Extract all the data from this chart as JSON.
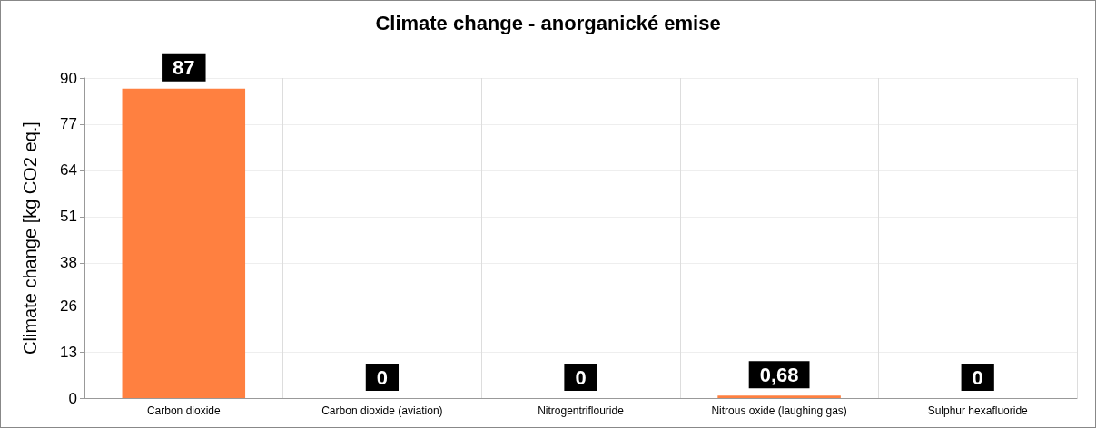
{
  "chart_data": {
    "type": "bar",
    "title": "Climate change - anorganické emise",
    "ylabel": "Climate change [kg CO2 eq.]",
    "categories": [
      "Carbon dioxide",
      "Carbon dioxide (aviation)",
      "Nitrogentriflouride",
      "Nitrous oxide (laughing gas)",
      "Sulphur hexafluoride"
    ],
    "values": [
      87,
      0,
      0,
      0.68,
      0
    ],
    "value_labels": [
      "87",
      "0",
      "0",
      "0,68",
      "0"
    ],
    "color": "#ff8040",
    "ylim": [
      0,
      90
    ],
    "yticks": [
      0,
      13,
      26,
      38,
      51,
      64,
      77,
      90
    ],
    "grid": true
  }
}
